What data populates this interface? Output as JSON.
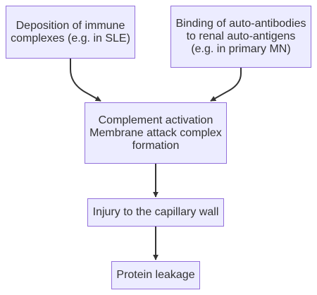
{
  "nodes": {
    "immune_complexes": "Deposition of immune\ncomplexes (e.g. in SLE)",
    "auto_antibodies": "Binding of auto-antibodies\nto renal auto-antigens\n(e.g. in primary MN)",
    "complement": "Complement activation\nMembrane attack complex\nformation",
    "capillary_injury": "Injury to the capillary wall",
    "protein_leakage": "Protein leakage"
  },
  "edges": [
    {
      "from": "immune_complexes",
      "to": "complement"
    },
    {
      "from": "auto_antibodies",
      "to": "complement"
    },
    {
      "from": "complement",
      "to": "capillary_injury"
    },
    {
      "from": "capillary_injury",
      "to": "protein_leakage"
    }
  ],
  "colors": {
    "node_fill": "#ECECFF",
    "node_border": "#9370DB",
    "edge": "#333333",
    "text": "#333333"
  }
}
